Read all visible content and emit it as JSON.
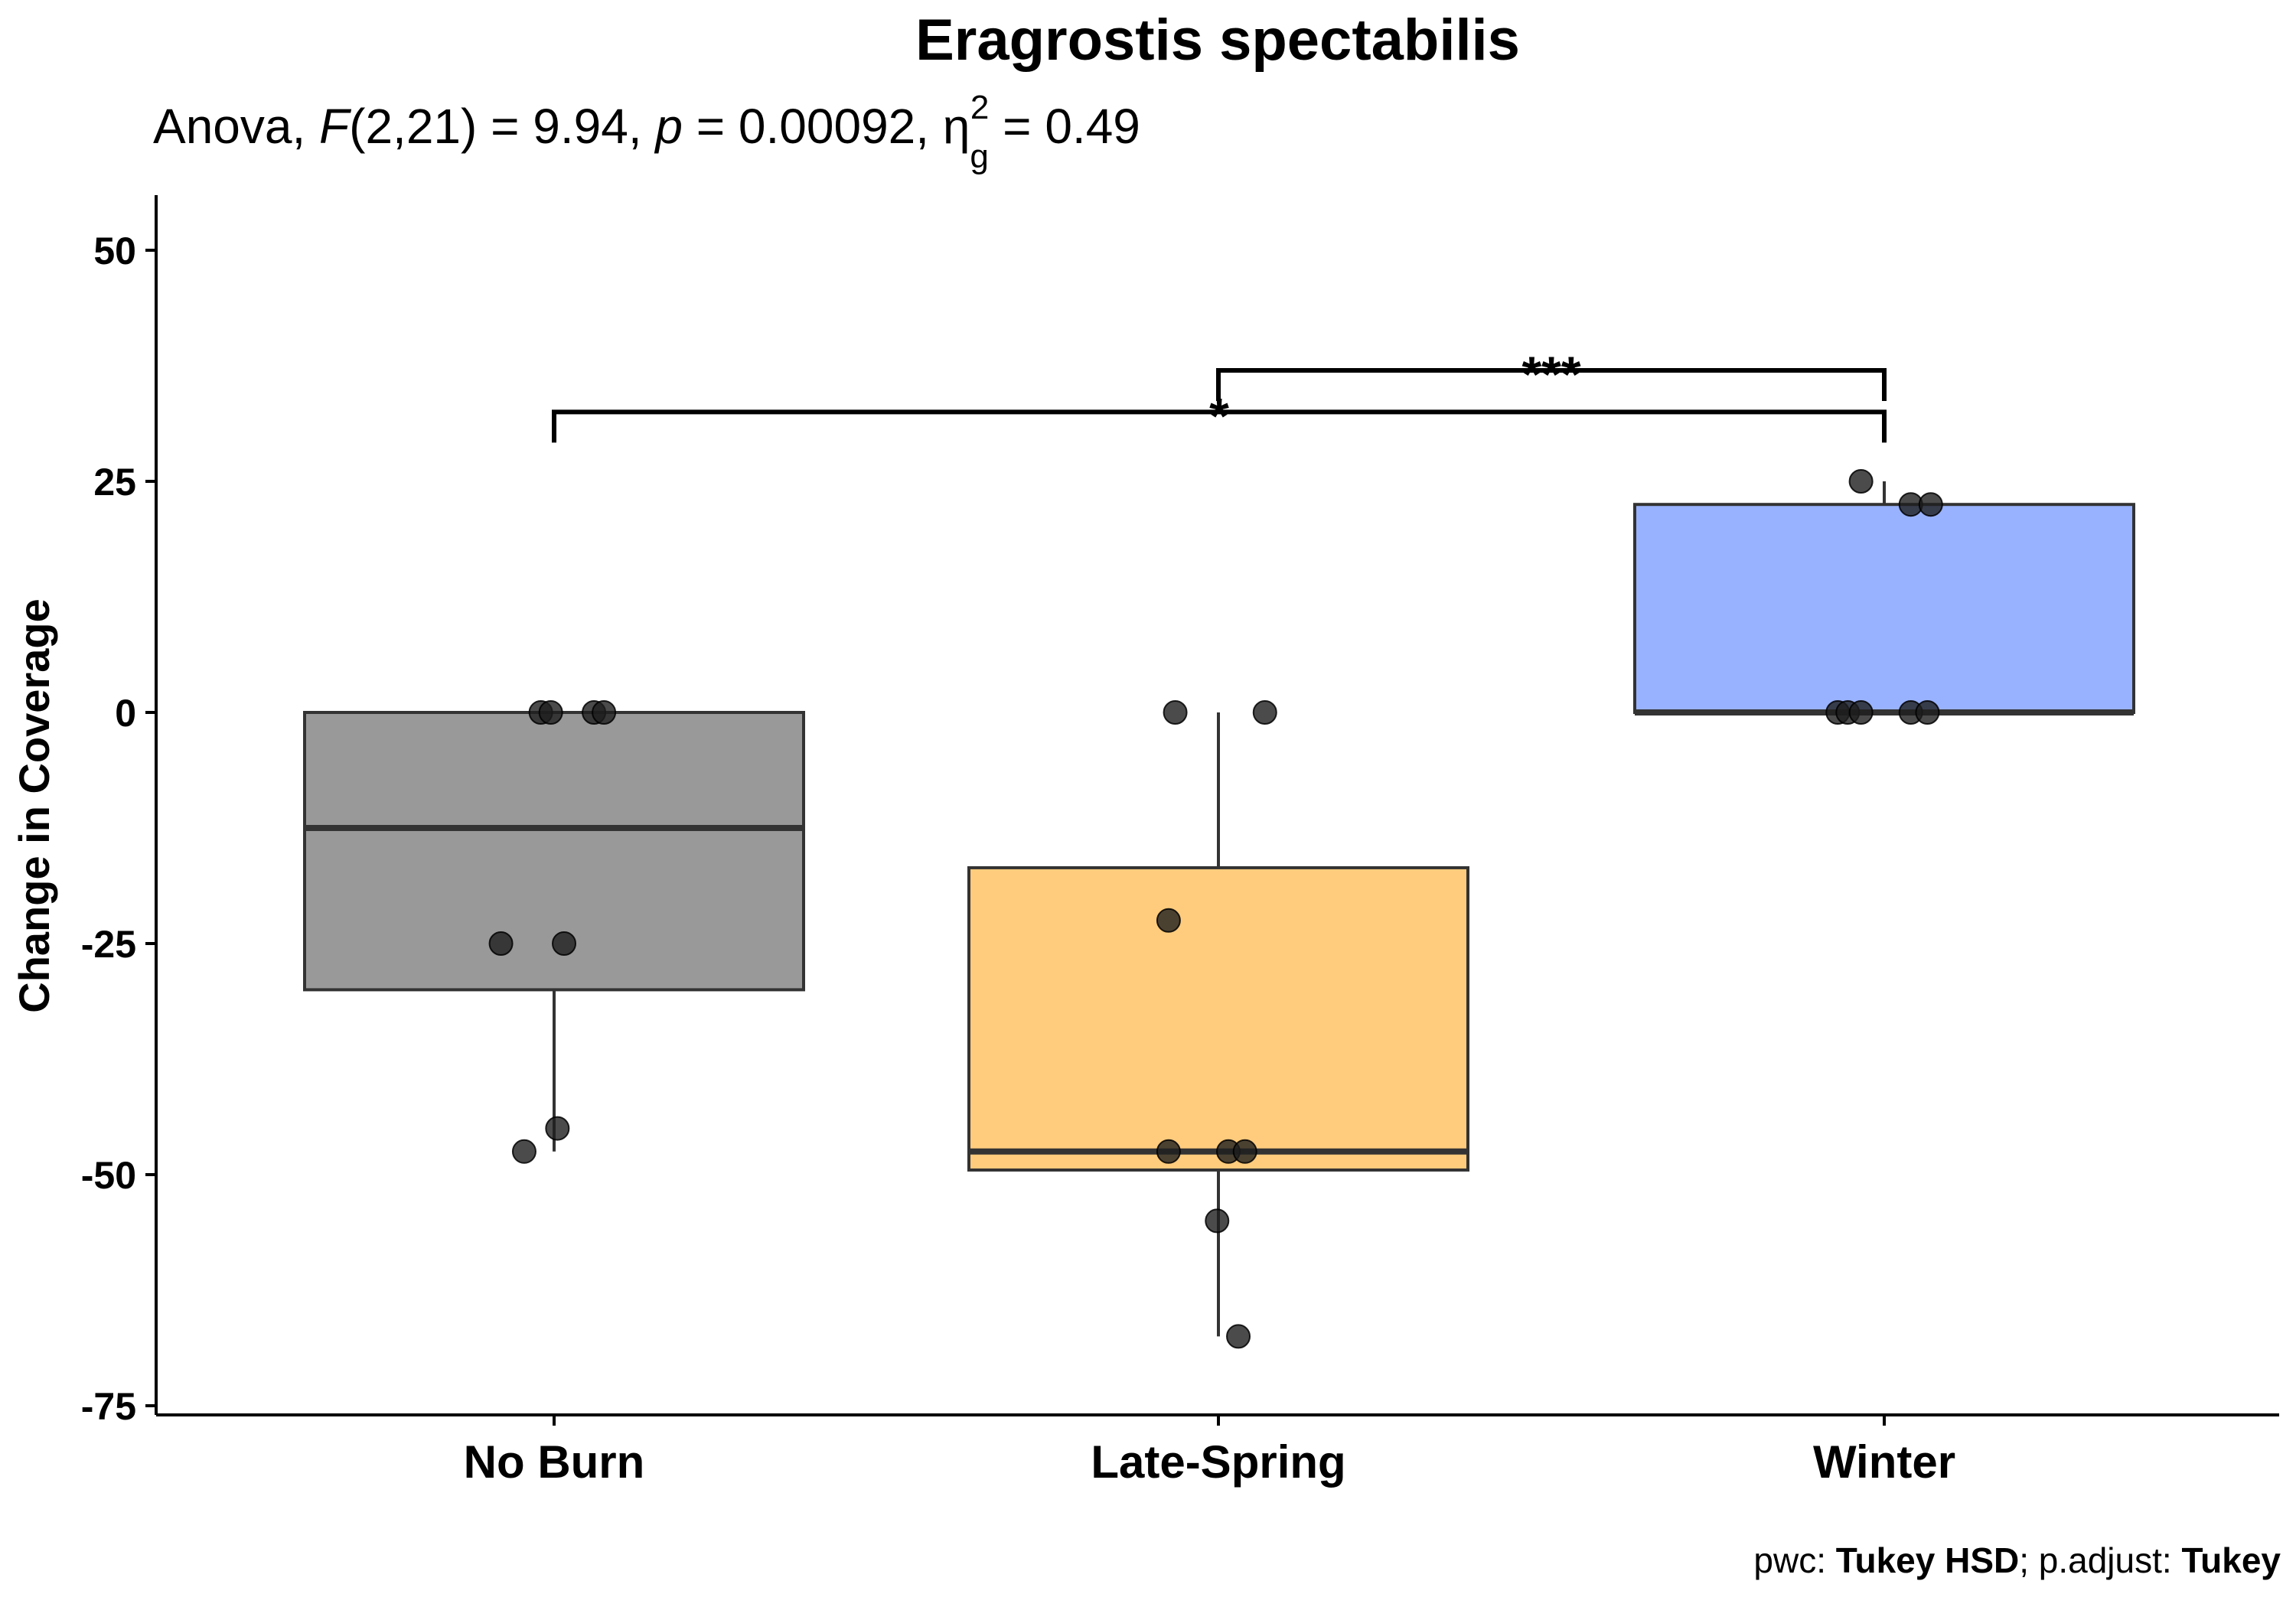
{
  "chart_data": {
    "type": "box",
    "title": "Eragrostis spectabilis",
    "subtitle": {
      "prefix": "Anova, ",
      "stat_symbol": "F",
      "df": "(2,21) = 9.94, ",
      "p_symbol": "p",
      "p_value": " = 0.00092, ",
      "effect_symbol": "η",
      "effect_sub": "g",
      "effect_sup": "2",
      "effect_value": " = 0.49"
    },
    "xlabel": "",
    "ylabel": "Change in Coverage",
    "ylim": [
      -76,
      56
    ],
    "y_ticks": [
      50,
      25,
      0,
      -25,
      -50,
      -75
    ],
    "y_tick_labels": [
      "50",
      "25",
      "0",
      "-25",
      "-50",
      "-75"
    ],
    "categories": [
      "No Burn",
      "Late-Spring",
      "Winter"
    ],
    "groups": [
      {
        "name": "No Burn",
        "color": "#999999",
        "box": {
          "min": -47.5,
          "q1": -30,
          "median": -12.5,
          "q3": 0,
          "max": 0
        },
        "points": [
          0,
          0,
          0,
          0,
          -25,
          -25,
          -45,
          -47.5
        ],
        "jitter": [
          -0.02,
          -0.005,
          0.06,
          0.075,
          -0.08,
          0.015,
          0.005,
          -0.045
        ]
      },
      {
        "name": "Late-Spring",
        "color": "#FFCC7D",
        "box": {
          "min": -67.5,
          "q1": -49.5,
          "median": -47.5,
          "q3": -16.8,
          "max": 0
        },
        "points": [
          0,
          0,
          -22.5,
          -47.5,
          -47.5,
          -47.5,
          -55,
          -67.5
        ],
        "jitter": [
          -0.065,
          0.07,
          -0.075,
          -0.075,
          0.015,
          0.04,
          -0.002,
          0.03
        ]
      },
      {
        "name": "Winter",
        "color": "#99B2FF",
        "box": {
          "min": 0,
          "q1": 0,
          "median": 0,
          "q3": 22.5,
          "max": 25
        },
        "points": [
          25,
          22.5,
          22.5,
          0,
          0,
          0,
          0,
          0
        ],
        "jitter": [
          -0.035,
          0.04,
          0.07,
          -0.07,
          -0.055,
          -0.035,
          0.04,
          0.065
        ]
      }
    ],
    "comparisons": [
      {
        "group1": "No Burn",
        "group2": "Winter",
        "label": "*",
        "y": 32.5
      },
      {
        "group1": "Late-Spring",
        "group2": "Winter",
        "label": "***",
        "y": 37
      }
    ],
    "caption": {
      "prefix": "pwc: ",
      "test": "Tukey HSD",
      "middle": "; p.adjust: ",
      "adjust": "Tukey"
    },
    "grid": false,
    "legend": "none"
  }
}
